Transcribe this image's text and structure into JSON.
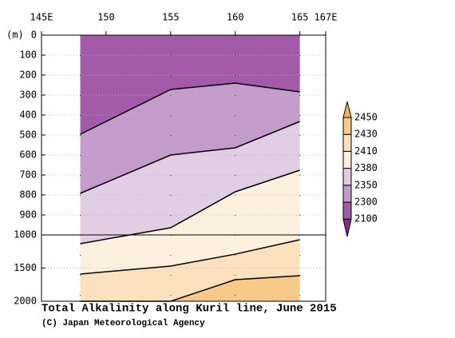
{
  "chart_data": {
    "type": "contour",
    "title": "Total Alkalinity along Kuril line, June 2015",
    "credit": "(C) Japan Meteorological Agency",
    "ylabel": "(m)",
    "xlim": [
      145,
      167
    ],
    "xticks": [
      {
        "value": 145,
        "label": "145E"
      },
      150,
      155,
      160,
      165,
      {
        "value": 167,
        "label": "167E"
      }
    ],
    "ylim": [
      0,
      2000
    ],
    "ybreak": 1000,
    "yticks": [
      0,
      100,
      200,
      300,
      400,
      500,
      600,
      700,
      800,
      900,
      1000,
      1500,
      2000
    ],
    "grid": true,
    "x": [
      148,
      155,
      160,
      165
    ],
    "contours": [
      {
        "level": 2300,
        "depths": [
          496,
          272,
          240,
          284
        ]
      },
      {
        "level": 2350,
        "depths": [
          792,
          600,
          564,
          432
        ]
      },
      {
        "level": 2380,
        "depths": [
          1132,
          964,
          784,
          676
        ]
      },
      {
        "level": 2410,
        "depths": [
          1590,
          1470,
          1290,
          1072
        ]
      },
      {
        "level": 2430,
        "depths": [
          2000,
          2000,
          1675,
          1615
        ]
      }
    ],
    "levels": [
      2100,
      2300,
      2350,
      2380,
      2410,
      2430,
      2450
    ],
    "colors": [
      "#8c2a8a",
      "#a35aa8",
      "#c49ccb",
      "#e2cde5",
      "#fdf0df",
      "#fbe1bd",
      "#f8ca8a",
      "#f5b357"
    ]
  }
}
